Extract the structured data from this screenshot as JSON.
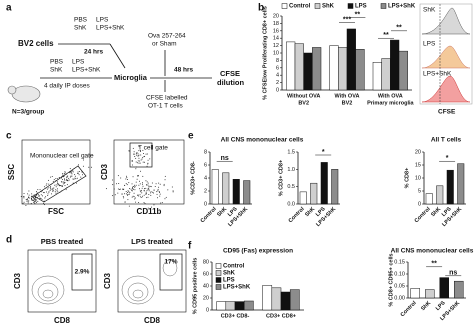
{
  "panels": {
    "a": {
      "label": "a",
      "bv2": "BV2 cells",
      "bv2_treatments": [
        "PBS",
        "ShK",
        "LPS",
        "LPS+ShK"
      ],
      "time1": "24 hrs",
      "mouse_treatments": [
        "PBS",
        "ShK",
        "LPS",
        "LPS+ShK"
      ],
      "doses": "4 daily IP doses",
      "n": "N=3/group",
      "microglia": "Microglia",
      "peptide": [
        "Ova 257-264",
        "or Sham"
      ],
      "time2": "48 hrs",
      "tcells": [
        "CFSE labelled",
        "OT-1 T cells"
      ],
      "readout": [
        "CFSE",
        "dilution"
      ]
    },
    "b": {
      "label": "b",
      "hist_labels": [
        "ShK",
        "LPS",
        "LPS+ShK"
      ],
      "hist_axis": "CFSE"
    },
    "c": {
      "label": "c",
      "plot1": {
        "y": "SSC",
        "x": "FSC",
        "gate": "Mononuclear cell gate"
      },
      "plot2": {
        "y": "CD3",
        "x": "CD11b",
        "gate": "T cell gate"
      }
    },
    "d": {
      "label": "d",
      "plots": [
        {
          "title": "PBS treated",
          "gate": "2.9%"
        },
        {
          "title": "LPS treated",
          "gate": "17%"
        }
      ],
      "y": "CD3",
      "x": "CD8"
    },
    "e": {
      "label": "e"
    },
    "f": {
      "label": "f"
    }
  },
  "chart_data": [
    {
      "type": "bar",
      "ylabel": "% CFSElow Proliferating CD8+ cells",
      "categories": [
        "Without OVA",
        "With OVA",
        "With OVA"
      ],
      "subcategories": [
        "BV2",
        "BV2",
        "Primary microglia"
      ],
      "series": [
        {
          "name": "Control",
          "color": "#ffffff",
          "values": [
            13,
            12,
            7.5
          ]
        },
        {
          "name": "ShK",
          "color": "#cfcfcf",
          "values": [
            12.5,
            11.5,
            8.5
          ]
        },
        {
          "name": "LPS",
          "color": "#111111",
          "values": [
            10,
            16.5,
            13.5
          ]
        },
        {
          "name": "LPS+ShK",
          "color": "#8c8c8c",
          "values": [
            11.5,
            11,
            10.5
          ]
        }
      ],
      "ylim": [
        0,
        20
      ],
      "yticks": [
        0,
        2,
        4,
        6,
        8,
        10,
        12,
        14,
        16,
        18,
        20
      ],
      "annotations": [
        "***",
        "**",
        "**",
        "**"
      ]
    },
    {
      "type": "bar",
      "title": "All CNS mononuclear cells",
      "ylabel": "%CD3+ CD8-",
      "categories": [
        "Control",
        "ShK",
        "LPS",
        "LPS+ShK"
      ],
      "values": [
        5.3,
        4.8,
        3.8,
        3.6
      ],
      "colors": [
        "#ffffff",
        "#cfcfcf",
        "#111111",
        "#8c8c8c"
      ],
      "ylim": [
        0,
        8
      ],
      "yticks": [
        0,
        2,
        4,
        6,
        8
      ],
      "annotations": [
        "ns"
      ]
    },
    {
      "type": "bar",
      "ylabel": "% CD3+ CD8+",
      "categories": [
        "Control",
        "ShK",
        "LPS",
        "LPS+ShK"
      ],
      "values": [
        0.35,
        0.6,
        1.2,
        1.0
      ],
      "colors": [
        "#ffffff",
        "#cfcfcf",
        "#111111",
        "#8c8c8c"
      ],
      "ylim": [
        0,
        1.5
      ],
      "yticks": [
        {
          "value": 0,
          "label": "0.0"
        },
        0.5,
        {
          "value": 1,
          "label": "1.0"
        },
        1.5
      ],
      "annotations": [
        "*"
      ]
    },
    {
      "type": "bar",
      "title": "All T cells",
      "ylabel": "% CD8+",
      "categories": [
        "Control",
        "ShK",
        "LPS",
        "LPS+ShK"
      ],
      "values": [
        4,
        7,
        13,
        15.5
      ],
      "colors": [
        "#ffffff",
        "#cfcfcf",
        "#111111",
        "#8c8c8c"
      ],
      "ylim": [
        0,
        20
      ],
      "yticks": [
        0,
        5,
        10,
        15,
        20
      ],
      "annotations": [
        "*"
      ]
    },
    {
      "type": "bar",
      "title": "CD95 (Fas) expression",
      "ylabel": "% CD95 positive cells",
      "categories": [
        "CD3+ CD8-",
        "CD3+ CD8+"
      ],
      "series": [
        {
          "name": "Control",
          "color": "#ffffff",
          "values": [
            14,
            41
          ]
        },
        {
          "name": "ShK",
          "color": "#cfcfcf",
          "values": [
            14,
            37
          ]
        },
        {
          "name": "LPS",
          "color": "#111111",
          "values": [
            14,
            30
          ]
        },
        {
          "name": "LPS+ShK",
          "color": "#8c8c8c",
          "values": [
            15,
            34
          ]
        }
      ],
      "ylim": [
        0,
        80
      ],
      "yticks": [
        0,
        20,
        40,
        60,
        80
      ]
    },
    {
      "type": "bar",
      "title": "All CNS mononuclear cells",
      "ylabel": "% CD8+ CD95+ cells",
      "categories": [
        "Control",
        "ShK",
        "LPS",
        "LPS+ShK"
      ],
      "values": [
        0.04,
        0.035,
        0.085,
        0.07
      ],
      "colors": [
        "#ffffff",
        "#cfcfcf",
        "#111111",
        "#8c8c8c"
      ],
      "ylim": [
        0,
        0.15
      ],
      "yticks": [
        {
          "value": 0,
          "label": "0.00"
        },
        0.05,
        {
          "value": 0.1,
          "label": "0.10"
        },
        0.15
      ],
      "annotations": [
        "**",
        "ns"
      ]
    }
  ]
}
